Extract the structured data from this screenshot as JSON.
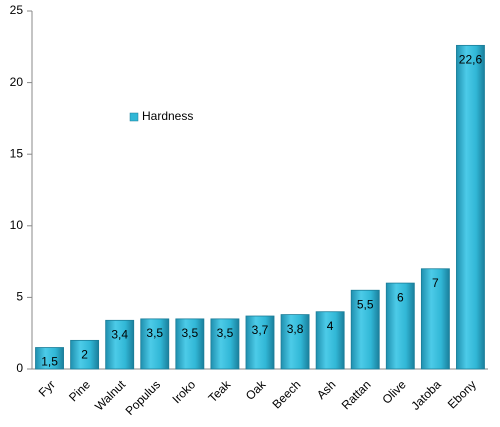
{
  "chart_data": {
    "type": "bar",
    "categories": [
      "Fyr",
      "Pine",
      "Walnut",
      "Populus",
      "Iroko",
      "Teak",
      "Oak",
      "Beech",
      "Ash",
      "Rattan",
      "Olive",
      "Jatoba",
      "Ebony"
    ],
    "series": [
      {
        "name": "Hardness",
        "color": "#31b7d6",
        "values": [
          1.5,
          2,
          3.4,
          3.5,
          3.5,
          3.5,
          3.7,
          3.8,
          4,
          5.5,
          6,
          7,
          22.6
        ],
        "value_labels": [
          "1,5",
          "2",
          "3,4",
          "3,5",
          "3,5",
          "3,5",
          "3,7",
          "3,8",
          "4",
          "5,5",
          "6",
          "7",
          "22,6"
        ]
      }
    ],
    "ylim": [
      0,
      25
    ],
    "yticks": [
      0,
      5,
      10,
      15,
      20,
      25
    ],
    "grid": false,
    "legend": "upper left"
  }
}
